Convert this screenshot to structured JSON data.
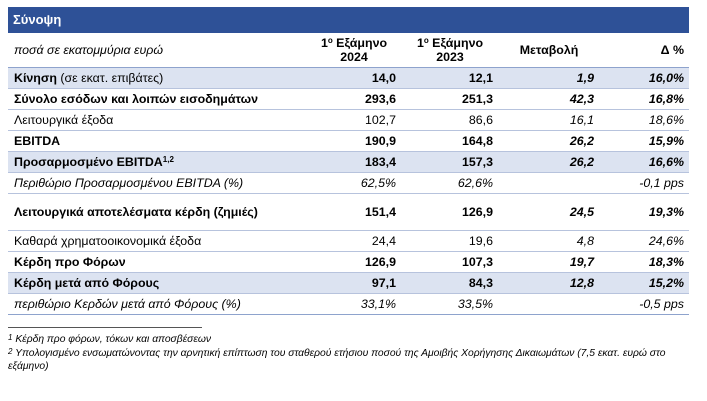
{
  "title": "Σύνοψη",
  "header": {
    "label": "ποσά σε εκατομμύρια ευρώ",
    "col1_sup": "ο",
    "col1_line1": "1",
    "col1_word": " Εξάμηνο",
    "col1_year": "2024",
    "col2_line1": "1",
    "col2_sup": "ο",
    "col2_word": " Εξάμηνο",
    "col2_year": "2023",
    "col3": "Μεταβολή",
    "col4": "Δ %"
  },
  "rows": [
    {
      "label": "Κίνηση",
      "label_extra": " (σε εκατ. επιβάτες)",
      "v2024": "14,0",
      "v2023": "12,1",
      "change": "1,9",
      "pct": "16,0%"
    },
    {
      "label": "Σύνολο εσόδων και λοιπών εισοδημάτων",
      "v2024": "293,6",
      "v2023": "251,3",
      "change": "42,3",
      "pct": "16,8%"
    },
    {
      "label": "Λειτουργικά έξοδα",
      "v2024": "102,7",
      "v2023": "86,6",
      "change": "16,1",
      "pct": "18,6%"
    },
    {
      "label": "EBITDA",
      "v2024": "190,9",
      "v2023": "164,8",
      "change": "26,2",
      "pct": "15,9%"
    },
    {
      "label": "Προσαρμοσμένο EBITDA",
      "label_sup": "1,2",
      "v2024": "183,4",
      "v2023": "157,3",
      "change": "26,2",
      "pct": "16,6%"
    },
    {
      "label": "Περιθώριο Προσαρμοσμένου EBITDA (%)",
      "v2024": "62,5%",
      "v2023": "62,6%",
      "change": "",
      "pct": "-0,1 pps"
    },
    {
      "label": "Λειτουργικά αποτελέσματα κέρδη (ζημιές)",
      "v2024": "151,4",
      "v2023": "126,9",
      "change": "24,5",
      "pct": "19,3%"
    },
    {
      "label": "Καθαρά χρηματοοικονομικά έξοδα",
      "v2024": "24,4",
      "v2023": "19,6",
      "change": "4,8",
      "pct": "24,6%"
    },
    {
      "label": "Κέρδη προ Φόρων",
      "v2024": "126,9",
      "v2023": "107,3",
      "change": "19,7",
      "pct": "18,3%"
    },
    {
      "label": "Κέρδη μετά από Φόρους",
      "v2024": "97,1",
      "v2023": "84,3",
      "change": "12,8",
      "pct": "15,2%"
    },
    {
      "label": "περιθώριο Κερδών μετά από Φόρους (%)",
      "v2024": "33,1%",
      "v2023": "33,5%",
      "change": "",
      "pct": "-0,5 pps"
    }
  ],
  "footnotes": [
    {
      "num": "1",
      "text": " Κέρδη προ φόρων, τόκων και αποσβέσεων"
    },
    {
      "num": "2",
      "text": " Υπολογισμένο ενσωματώνοντας την αρνητική επίπτωση του σταθερού ετήσιου ποσού της Αμοιβής Χορήγησης Δικαιωμάτων (7,5 εκατ. ευρώ στο εξάμηνο)"
    }
  ],
  "colors": {
    "header_blue": "#2e5197",
    "shade": "#dce3f1",
    "rule": "#b7c3dd"
  }
}
